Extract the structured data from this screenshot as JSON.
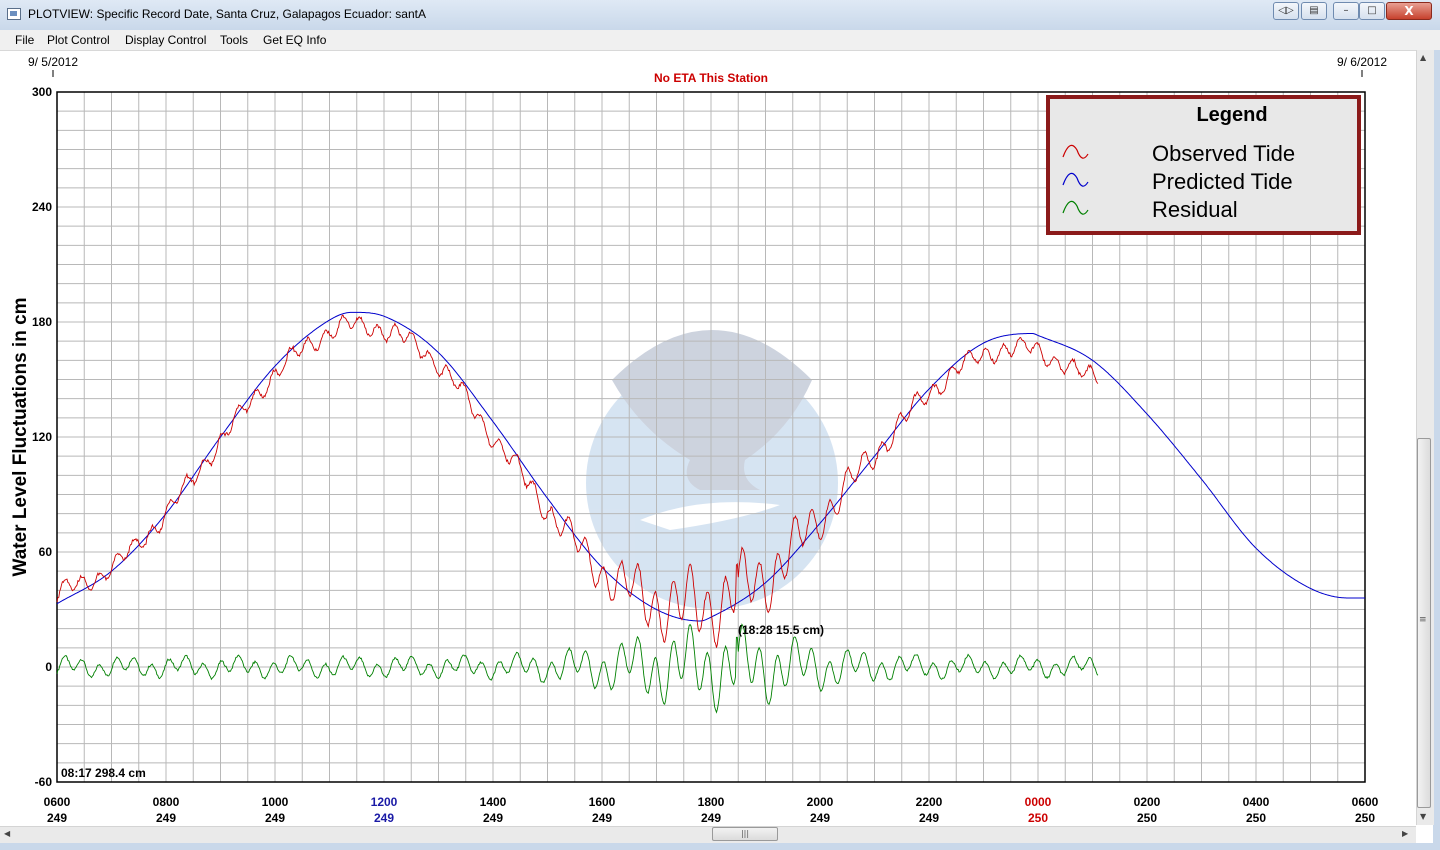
{
  "window": {
    "title": "PLOTVIEW: Specific Record Date, Santa Cruz, Galapagos Ecuador: santA",
    "controls": {
      "back_label": "◁▷",
      "copy_label": "▤",
      "minimize_label": "–",
      "maximize_label": "□",
      "close_label": "X"
    }
  },
  "menu": [
    {
      "label": "File"
    },
    {
      "label": "Plot Control"
    },
    {
      "label": "Display Control"
    },
    {
      "label": "Tools"
    },
    {
      "label": "Get EQ Info"
    }
  ],
  "chart_data": {
    "type": "line",
    "title": "No ETA This Station",
    "ylabel": "Water Level Fluctuations in cm",
    "xlabel": "",
    "ylim": [
      -60,
      300
    ],
    "y_ticks": [
      -60,
      0,
      60,
      120,
      180,
      240,
      300
    ],
    "xlim_hours": [
      6,
      30
    ],
    "date_start_label": "9/ 5/2012",
    "date_end_label": "9/ 6/2012",
    "x_tick_labels": [
      {
        "time": "0600",
        "day": "249",
        "color": "#000000"
      },
      {
        "time": "0800",
        "day": "249",
        "color": "#000000"
      },
      {
        "time": "1000",
        "day": "249",
        "color": "#000000"
      },
      {
        "time": "1200",
        "day": "249",
        "color": "#1a1aa6"
      },
      {
        "time": "1400",
        "day": "249",
        "color": "#000000"
      },
      {
        "time": "1600",
        "day": "249",
        "color": "#000000"
      },
      {
        "time": "1800",
        "day": "249",
        "color": "#000000"
      },
      {
        "time": "2000",
        "day": "249",
        "color": "#000000"
      },
      {
        "time": "2200",
        "day": "249",
        "color": "#000000"
      },
      {
        "time": "0000",
        "day": "250",
        "color": "#cc0000"
      },
      {
        "time": "0200",
        "day": "250",
        "color": "#000000"
      },
      {
        "time": "0400",
        "day": "250",
        "color": "#000000"
      },
      {
        "time": "0600",
        "day": "250",
        "color": "#000000"
      }
    ],
    "grid": true,
    "legend": {
      "title": "Legend",
      "position": "top-right",
      "entries": [
        {
          "label": "Observed Tide",
          "color": "#cc0000"
        },
        {
          "label": "Predicted Tide",
          "color": "#0000cc"
        },
        {
          "label": "Residual",
          "color": "#008000"
        }
      ]
    },
    "annotations": {
      "max_residual": "(18:28  15.5 cm)",
      "cursor_readout": "08:17 298.4 cm"
    },
    "series": [
      {
        "name": "Predicted Tide",
        "color": "#0000cc",
        "x_hours": [
          6,
          7,
          8,
          9,
          10,
          11,
          11.4,
          12,
          13,
          14,
          15,
          16,
          17,
          17.8,
          18,
          19,
          20,
          21,
          22,
          23,
          23.9,
          24,
          25,
          26,
          27,
          28,
          29,
          29.7,
          30
        ],
        "values": [
          33,
          50,
          80,
          120,
          157,
          181,
          185,
          183,
          164,
          128,
          88,
          52,
          30,
          24,
          26,
          44,
          75,
          110,
          145,
          169,
          174,
          173,
          160,
          132,
          98,
          62,
          41,
          36,
          36
        ]
      },
      {
        "name": "Observed Tide",
        "color": "#cc0000",
        "x_hours": [
          6,
          7,
          8,
          9,
          10,
          11,
          11.4,
          12,
          13,
          14,
          15,
          16,
          17,
          17.8,
          18,
          19,
          20,
          21,
          22,
          23,
          23.9,
          24,
          25,
          25.1
        ],
        "values": [
          38,
          52,
          80,
          118,
          153,
          175,
          178,
          176,
          158,
          120,
          83,
          50,
          34,
          31,
          33,
          47,
          78,
          111,
          143,
          163,
          166,
          165,
          152,
          152
        ]
      },
      {
        "name": "Residual",
        "color": "#008000",
        "x_hours": [
          6,
          25.1
        ],
        "values": [
          0,
          0
        ],
        "max_amplitude_cm": 15.5,
        "max_at_hours": 18.47
      }
    ]
  }
}
